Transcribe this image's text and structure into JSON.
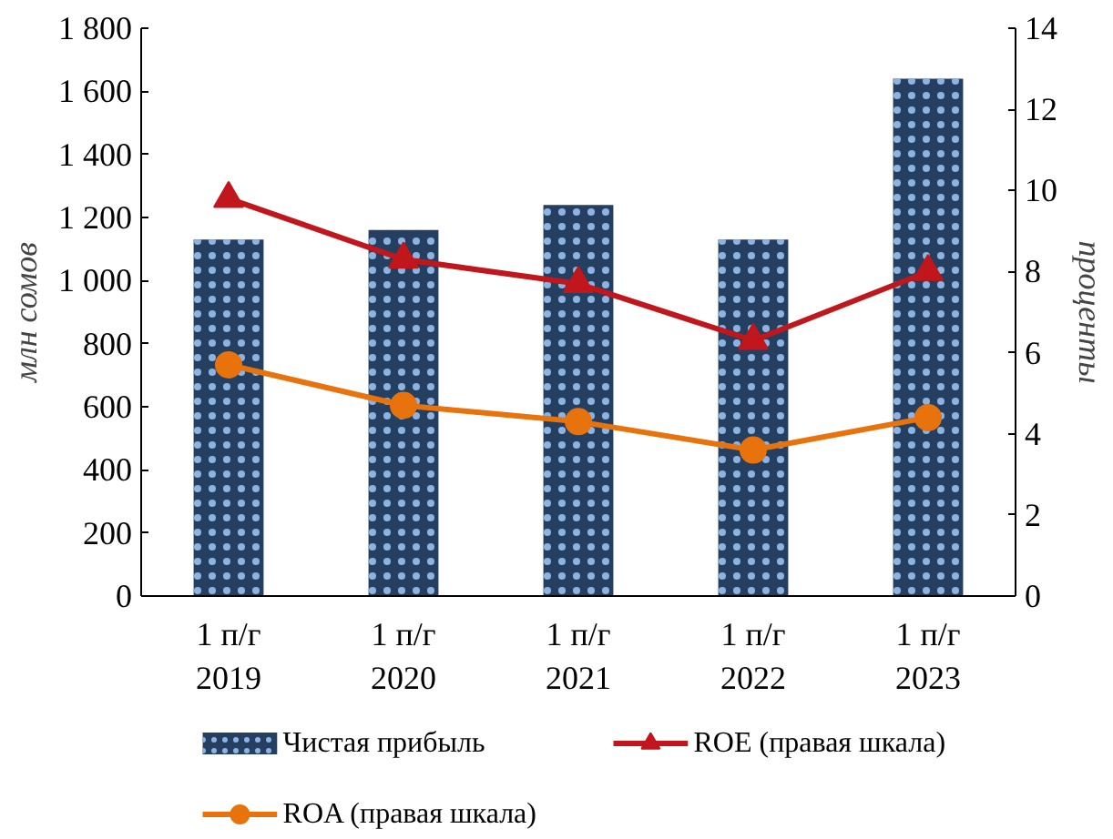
{
  "chart_data": {
    "type": "bar",
    "ylabel": "млн сомов",
    "y2label": "проценты",
    "categories": [
      "1 п/г\n2019",
      "1 п/г\n2020",
      "1 п/г\n2021",
      "1 п/г\n2022",
      "1 п/г\n2023"
    ],
    "series": [
      {
        "name": "Чистая прибыль",
        "type": "bar",
        "color": "#243f60",
        "values": [
          1130,
          1160,
          1240,
          1130,
          1640
        ]
      },
      {
        "name": "ROE (правая  шкала)",
        "type": "line",
        "axis": "y2",
        "marker": "triangle",
        "color": "#c0161c",
        "values": [
          9.8,
          8.3,
          7.7,
          6.3,
          8.0
        ]
      },
      {
        "name": "ROA (правая  шкала)",
        "type": "line",
        "axis": "y2",
        "marker": "circle",
        "color": "#e8720c",
        "values": [
          5.7,
          4.7,
          4.3,
          3.6,
          4.4
        ]
      }
    ],
    "ylim": [
      0,
      1800
    ],
    "yticks": [
      0,
      200,
      400,
      600,
      800,
      {
        "value": 1000,
        "label": "1 000"
      },
      {
        "value": 1200,
        "label": "1 200"
      },
      {
        "value": 1400,
        "label": "1 400"
      },
      {
        "value": 1600,
        "label": "1 600"
      },
      {
        "value": 1800,
        "label": "1 800"
      }
    ],
    "y2lim": [
      0,
      14
    ],
    "y2ticks": [
      0,
      2,
      4,
      6,
      8,
      10,
      12,
      14
    ],
    "grid": false,
    "legend": "bottom"
  }
}
